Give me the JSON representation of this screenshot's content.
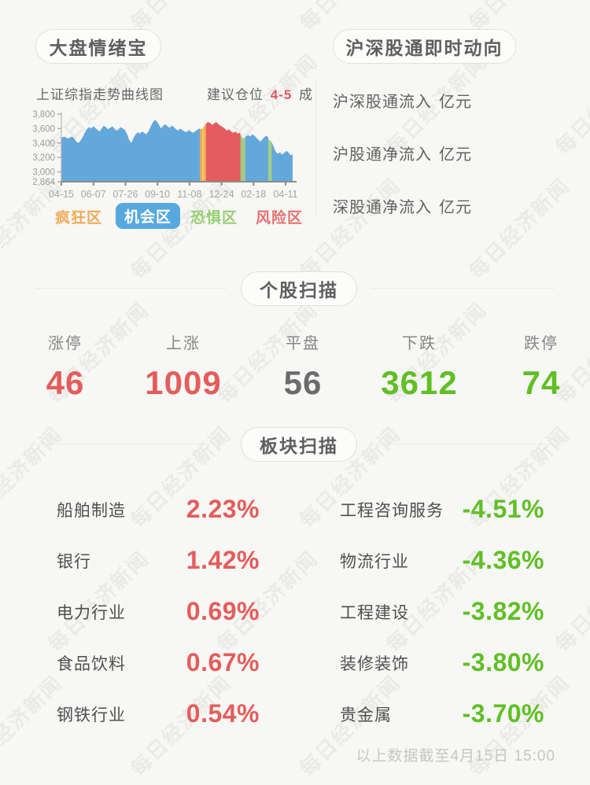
{
  "page": {
    "title_left": "大盘情绪宝",
    "title_right": "沪深股通即时动向"
  },
  "watermark": {
    "text": "每日经济新闻"
  },
  "market_mood": {
    "chart_title": "上证综指走势曲线图",
    "position_advice_prefix": "建议仓位",
    "position_advice_value": "4-5",
    "position_advice_suffix": "成",
    "legend": [
      {
        "label": "疯狂区",
        "color": "#f2ab55",
        "active": false
      },
      {
        "label": "机会区",
        "color": "#57a8df",
        "active": true
      },
      {
        "label": "恐惧区",
        "color": "#98cf74",
        "active": false
      },
      {
        "label": "风险区",
        "color": "#e57070",
        "active": false
      }
    ]
  },
  "chart_data": {
    "type": "area",
    "title": "上证综指走势曲线图",
    "x_tick_labels": [
      "04-15",
      "06-07",
      "07-26",
      "09-10",
      "11-08",
      "12-24",
      "02-18",
      "04-11"
    ],
    "y_tick_labels": [
      "3,800",
      "3,600",
      "3,400",
      "3,200",
      "3,000",
      "2,864"
    ],
    "y_ticks": [
      3800,
      3600,
      3400,
      3200,
      3000,
      2864
    ],
    "ylim": [
      2864,
      3800
    ],
    "grid": false,
    "values": [
      3470,
      3485,
      3480,
      3460,
      3475,
      3490,
      3465,
      3420,
      3400,
      3430,
      3480,
      3540,
      3590,
      3620,
      3600,
      3630,
      3610,
      3580,
      3560,
      3600,
      3640,
      3620,
      3590,
      3610,
      3630,
      3600,
      3570,
      3590,
      3620,
      3600,
      3580,
      3520,
      3440,
      3400,
      3470,
      3520,
      3550,
      3530,
      3560,
      3540,
      3520,
      3560,
      3620,
      3680,
      3720,
      3700,
      3650,
      3600,
      3640,
      3660,
      3630,
      3610,
      3640,
      3620,
      3590,
      3570,
      3600,
      3580,
      3560,
      3550,
      3580,
      3560,
      3540,
      3560,
      3580,
      3600,
      3590,
      3620,
      3660,
      3690,
      3680,
      3650,
      3670,
      3690,
      3660,
      3640,
      3620,
      3600,
      3570,
      3590,
      3560,
      3540,
      3560,
      3530,
      3540,
      3480,
      3460,
      3490,
      3510,
      3490,
      3520,
      3500,
      3470,
      3440,
      3420,
      3460,
      3490,
      3500,
      3440,
      3420,
      3350,
      3280,
      3250,
      3270,
      3240,
      3260,
      3290,
      3270,
      3230,
      3245
    ],
    "zones": [
      {
        "from": 0.0,
        "to": 0.6,
        "color": "#63a8db",
        "label": "机会区"
      },
      {
        "from": 0.6,
        "to": 0.609,
        "color": "#f1a74d",
        "label": "疯狂区"
      },
      {
        "from": 0.609,
        "to": 0.616,
        "color": "#f2cd5c",
        "label": "疯狂区"
      },
      {
        "from": 0.616,
        "to": 0.625,
        "color": "#f1a74d",
        "label": "疯狂区"
      },
      {
        "from": 0.625,
        "to": 0.775,
        "color": "#e45c5f",
        "label": "风险区"
      },
      {
        "from": 0.775,
        "to": 0.795,
        "color": "#a2cb84",
        "label": "恐惧区"
      },
      {
        "from": 0.795,
        "to": 0.895,
        "color": "#63a8db",
        "label": "机会区"
      },
      {
        "from": 0.895,
        "to": 0.91,
        "color": "#a2cb84",
        "label": "恐惧区"
      },
      {
        "from": 0.91,
        "to": 1.0,
        "color": "#63a8db",
        "label": "机会区"
      }
    ]
  },
  "northbound": {
    "rows": [
      {
        "label": "沪深股通流入",
        "unit": "亿元"
      },
      {
        "label": "沪股通净流入",
        "unit": "亿元"
      },
      {
        "label": "深股通净流入",
        "unit": "亿元"
      }
    ]
  },
  "stock_scan": {
    "section_title": "个股扫描",
    "items": [
      {
        "label": "涨停",
        "value": "46",
        "color": "#e45d5b"
      },
      {
        "label": "上涨",
        "value": "1009",
        "color": "#e45d5b"
      },
      {
        "label": "平盘",
        "value": "56",
        "color": "#6b6b6b"
      },
      {
        "label": "下跌",
        "value": "3612",
        "color": "#60bf25"
      },
      {
        "label": "跌停",
        "value": "74",
        "color": "#60bf25"
      }
    ]
  },
  "sector_scan": {
    "section_title": "板块扫描",
    "up_color": "#e45d5b",
    "down_color": "#60bf25",
    "gainers": [
      {
        "name": "船舶制造",
        "value": "2.23%"
      },
      {
        "name": "银行",
        "value": "1.42%"
      },
      {
        "name": "电力行业",
        "value": "0.69%"
      },
      {
        "name": "食品饮料",
        "value": "0.67%"
      },
      {
        "name": "钢铁行业",
        "value": "0.54%"
      }
    ],
    "losers": [
      {
        "name": "工程咨询服务",
        "value": "-4.51%"
      },
      {
        "name": "物流行业",
        "value": "-4.36%"
      },
      {
        "name": "工程建设",
        "value": "-3.82%"
      },
      {
        "name": "装修装饰",
        "value": "-3.80%"
      },
      {
        "name": "贵金属",
        "value": "-3.70%"
      }
    ]
  },
  "footer": {
    "note": "以上数据截至4月15日 15:00"
  }
}
